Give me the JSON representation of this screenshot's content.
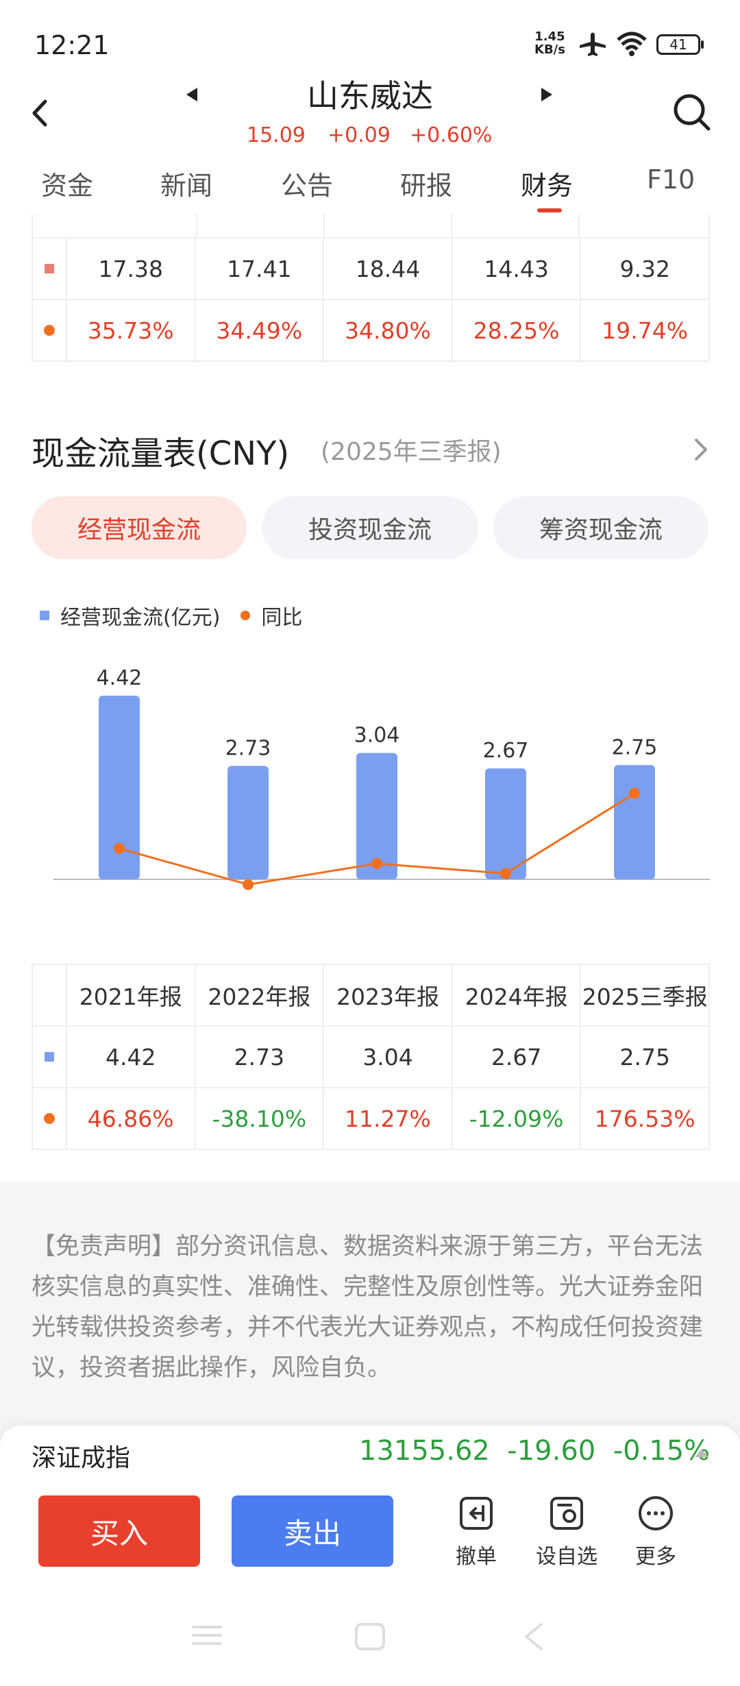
{
  "status_bar": {
    "time": "12:21",
    "net_speed": "1.45",
    "net_unit": "KB/s",
    "battery": "41"
  },
  "header": {
    "stock_name": "山东威达",
    "price": "15.09",
    "change": "+0.09",
    "change_pct": "+0.60%"
  },
  "tabs": [
    "资金",
    "新闻",
    "公告",
    "研报",
    "财务",
    "F10"
  ],
  "active_tab": "财务",
  "upper_table": {
    "rows": [
      {
        "marker": "square-red",
        "values": [
          "17.38",
          "17.41",
          "18.44",
          "14.43",
          "9.32"
        ]
      },
      {
        "marker": "dot-orange",
        "values": [
          "35.73%",
          "34.49%",
          "34.80%",
          "28.25%",
          "19.74%"
        ]
      }
    ]
  },
  "section": {
    "title": "现金流量表(CNY)",
    "subtitle": "(2025年三季报)"
  },
  "pills": [
    "经营现金流",
    "投资现金流",
    "筹资现金流"
  ],
  "legend": {
    "bar": "经营现金流(亿元)",
    "line": "同比"
  },
  "chart_data": {
    "type": "bar",
    "categories": [
      "2021年报",
      "2022年报",
      "2023年报",
      "2024年报",
      "2025三季报"
    ],
    "series": [
      {
        "name": "经营现金流(亿元)",
        "values": [
          4.42,
          2.73,
          3.04,
          2.67,
          2.75
        ],
        "color": "#7b9ff0"
      },
      {
        "name": "同比",
        "values": [
          46.86,
          -38.1,
          11.27,
          -12.09,
          176.53
        ],
        "color": "#f07020",
        "type": "line"
      }
    ],
    "data_labels": [
      "4.42",
      "2.73",
      "3.04",
      "2.67",
      "2.75"
    ]
  },
  "cash_table": {
    "headers": [
      "2021年报",
      "2022年报",
      "2023年报",
      "2024年报",
      "2025三季报"
    ],
    "values": [
      "4.42",
      "2.73",
      "3.04",
      "2.67",
      "2.75"
    ],
    "yoy": [
      "46.86%",
      "-38.10%",
      "11.27%",
      "-12.09%",
      "176.53%"
    ]
  },
  "disclaimer": "【免责声明】部分资讯信息、数据资料来源于第三方，平台无法核实信息的真实性、准确性、完整性及原创性等。光大证券金阳光转载供投资参考，并不代表光大证券观点，不构成任何投资建议，投资者据此操作，风险自负。",
  "index": {
    "name": "深证成指",
    "value": "13155.62",
    "change": "-19.60",
    "change_pct": "-0.15%"
  },
  "actions": {
    "buy": "买入",
    "sell": "卖出",
    "cancel": "撤单",
    "watchlist": "设自选",
    "more": "更多"
  },
  "colors": {
    "up": "#e0402a",
    "down": "#2c9e3c",
    "bar": "#7b9ff0",
    "line": "#f07020",
    "buy": "#e8402c",
    "sell": "#4b7cf0"
  }
}
